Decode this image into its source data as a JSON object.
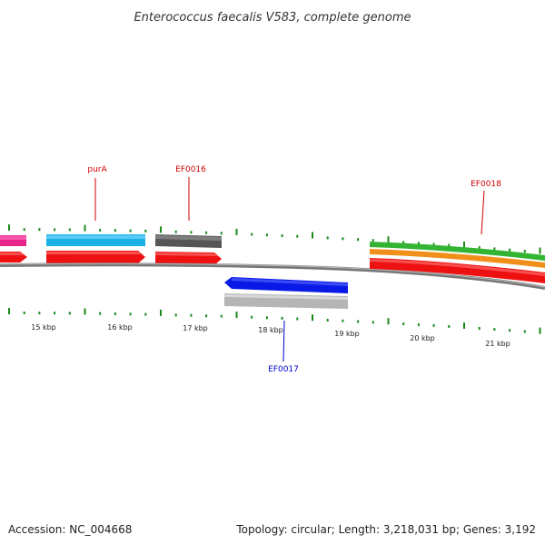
{
  "title": "Enterococcus faecalis V583, complete genome",
  "footer": {
    "accession": "Accession: NC_004668",
    "summary": "Topology: circular; Length: 3,218,031 bp; Genes: 3,192"
  },
  "colors": {
    "backbone": "#808080",
    "tick": "#1a8a1a",
    "label_red": "#cc0000",
    "label_blue": "#0000cc"
  },
  "ruler": {
    "kbp_labels": [
      "15 kbp",
      "16 kbp",
      "17 kbp",
      "18 kbp",
      "19 kbp",
      "20 kbp",
      "21 kbp"
    ]
  },
  "gene_labels": [
    {
      "text": "purA",
      "color": "#cc0000"
    },
    {
      "text": "EF0016",
      "color": "#cc0000"
    },
    {
      "text": "EF0018",
      "color": "#cc0000"
    },
    {
      "text": "EF0017",
      "color": "#0000cc"
    }
  ],
  "features": [
    {
      "name": "feature-magenta",
      "color": "#e8238c",
      "strand": "forward"
    },
    {
      "name": "feature-cyan",
      "color": "#1ab2e6",
      "strand": "forward"
    },
    {
      "name": "feature-darkgray",
      "color": "#555555",
      "strand": "forward"
    },
    {
      "name": "feature-green",
      "color": "#33b533",
      "strand": "forward"
    },
    {
      "name": "feature-orange",
      "color": "#f0901a",
      "strand": "forward"
    },
    {
      "name": "feature-blue",
      "color": "#0a1ae6",
      "strand": "reverse"
    },
    {
      "name": "feature-lightgray",
      "color": "#b5b5b5",
      "strand": "reverse"
    },
    {
      "name": "cds-red",
      "color": "#ee1111",
      "strand": "forward"
    }
  ]
}
